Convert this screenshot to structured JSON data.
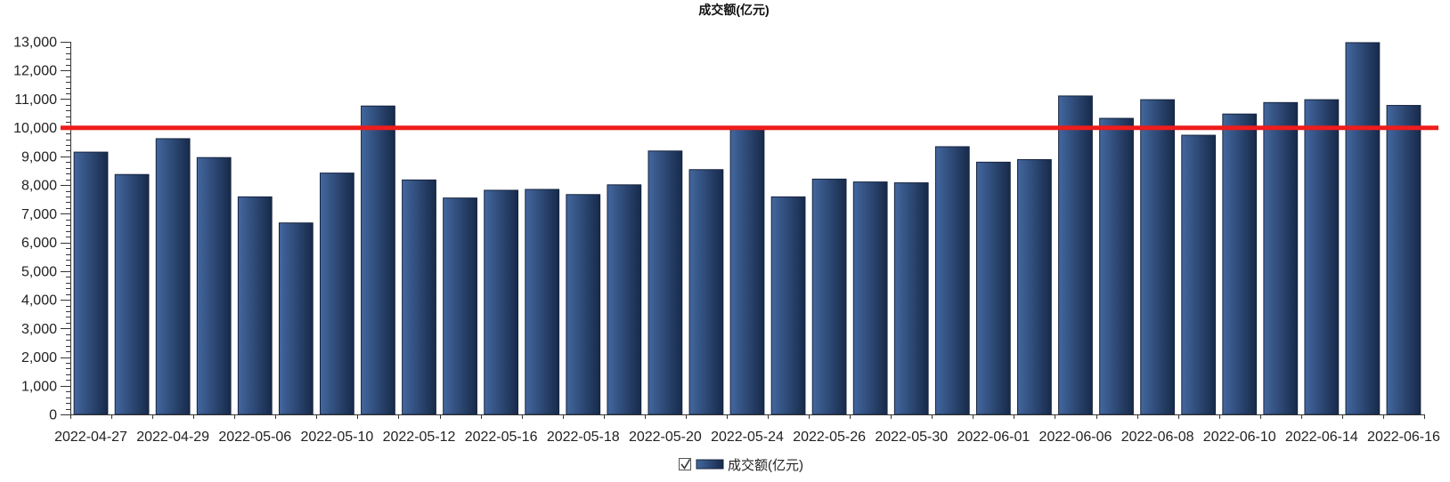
{
  "chart_data": {
    "type": "bar",
    "title": "成交额(亿元)",
    "xlabel": "",
    "ylabel": "",
    "categories": [
      "2022-04-27",
      "",
      "2022-04-29",
      "",
      "2022-05-06",
      "",
      "2022-05-10",
      "",
      "2022-05-12",
      "",
      "2022-05-16",
      "",
      "2022-05-18",
      "",
      "2022-05-20",
      "",
      "2022-05-24",
      "",
      "2022-05-26",
      "",
      "2022-05-30",
      "",
      "2022-06-01",
      "",
      "2022-06-06",
      "",
      "2022-06-08",
      "",
      "2022-06-10",
      "",
      "2022-06-14",
      "",
      "2022-06-16"
    ],
    "series": [
      {
        "name": "成交额(亿元)",
        "values": [
          9150,
          8370,
          9620,
          8960,
          7590,
          6680,
          8420,
          10760,
          8180,
          7550,
          7820,
          7850,
          7670,
          8010,
          9190,
          8540,
          9950,
          7590,
          8210,
          8110,
          8080,
          9340,
          8800,
          8890,
          11110,
          10330,
          10980,
          9740,
          10480,
          10880,
          10980,
          12970,
          10780
        ]
      }
    ],
    "ylim": [
      0,
      13000
    ],
    "yticks": [
      0,
      1000,
      2000,
      3000,
      4000,
      5000,
      6000,
      7000,
      8000,
      9000,
      10000,
      11000,
      12000,
      13000
    ],
    "ytick_labels": [
      "0",
      "1,000",
      "2,000",
      "3,000",
      "4,000",
      "5,000",
      "6,000",
      "7,000",
      "8,000",
      "9,000",
      "10,000",
      "11,000",
      "12,000",
      "13,000"
    ],
    "grid": false,
    "reference_lines": [
      {
        "value": 10000,
        "color": "#ee1c1c"
      }
    ],
    "legend": {
      "position": "bottom",
      "checked": true
    }
  },
  "colors": {
    "bar_light": "#43679f",
    "bar_dark": "#172a4a",
    "bar_border": "#15243f"
  }
}
